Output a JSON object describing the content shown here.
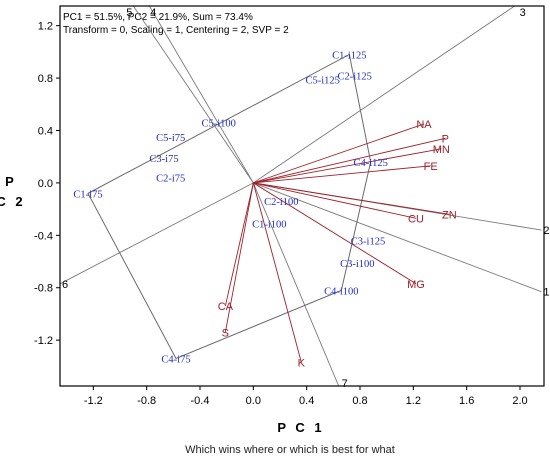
{
  "info_lines": [
    "PC1 = 51.5%, PC2 = 21.9%, Sum = 73.4%",
    "Transform = 0, Scaling = 1, Centering = 2, SVP = 2"
  ],
  "caption": "Which wins where or which is best for what",
  "chart_data": {
    "type": "scatter",
    "xlabel": "P C 1",
    "ylabel": "P C 2",
    "xlim": [
      -1.45,
      2.18
    ],
    "ylim": [
      -1.55,
      1.35
    ],
    "xticks": [
      "-1.2",
      "-0.8",
      "-0.4",
      "0.0",
      "0.4",
      "0.8",
      "1.2",
      "1.6",
      "2.0"
    ],
    "xtick_values": [
      -1.2,
      -0.8,
      -0.4,
      0.0,
      0.4,
      0.8,
      1.2,
      1.6,
      2.0
    ],
    "yticks": [
      "1.2",
      "0.8",
      "0.4",
      "0.0",
      "-0.4",
      "-0.8",
      "-1.2"
    ],
    "ytick_values": [
      1.2,
      0.8,
      0.4,
      0.0,
      -0.4,
      -0.8,
      -1.2
    ],
    "genotypes": [
      {
        "label": "C1-i125",
        "x": 0.72,
        "y": 0.98
      },
      {
        "label": "C5-i125",
        "x": 0.52,
        "y": 0.79
      },
      {
        "label": "C2-i125",
        "x": 0.76,
        "y": 0.82
      },
      {
        "label": "C5-i100",
        "x": -0.26,
        "y": 0.46
      },
      {
        "label": "C5-i75",
        "x": -0.62,
        "y": 0.35
      },
      {
        "label": "C3-i75",
        "x": -0.67,
        "y": 0.19
      },
      {
        "label": "C2-i75",
        "x": -0.62,
        "y": 0.04
      },
      {
        "label": "C1-i75",
        "x": -1.24,
        "y": -0.08
      },
      {
        "label": "C4-i125",
        "x": 0.88,
        "y": 0.16
      },
      {
        "label": "C2-i100",
        "x": 0.21,
        "y": -0.14
      },
      {
        "label": "C1-i100",
        "x": 0.12,
        "y": -0.31
      },
      {
        "label": "C3-i125",
        "x": 0.86,
        "y": -0.44
      },
      {
        "label": "C3-i100",
        "x": 0.78,
        "y": -0.61
      },
      {
        "label": "C4-i100",
        "x": 0.66,
        "y": -0.82
      },
      {
        "label": "C4-i75",
        "x": -0.58,
        "y": -1.34
      }
    ],
    "environments": [
      {
        "label": "NA",
        "x": 1.28,
        "y": 0.45
      },
      {
        "label": "P",
        "x": 1.44,
        "y": 0.34
      },
      {
        "label": "MN",
        "x": 1.41,
        "y": 0.26
      },
      {
        "label": "FE",
        "x": 1.33,
        "y": 0.13
      },
      {
        "label": "ZN",
        "x": 1.47,
        "y": -0.24
      },
      {
        "label": "CU",
        "x": 1.22,
        "y": -0.27
      },
      {
        "label": "MG",
        "x": 1.22,
        "y": -0.77
      },
      {
        "label": "CA",
        "x": -0.21,
        "y": -0.94
      },
      {
        "label": "S",
        "x": -0.21,
        "y": -1.14
      },
      {
        "label": "K",
        "x": 0.36,
        "y": -1.37
      }
    ],
    "polygon_vertices": [
      "C1-i125",
      "C4-i125",
      "C4-i100",
      "C4-i75",
      "C1-i75"
    ],
    "sector_rays": [
      {
        "label": "1",
        "x": 2.16,
        "y": -0.83
      },
      {
        "label": "2",
        "x": 2.16,
        "y": -0.36
      },
      {
        "label": "3",
        "x": 1.96,
        "y": 1.35
      },
      {
        "label": "4",
        "x": -0.78,
        "y": 1.35
      },
      {
        "label": "5",
        "x": -0.9,
        "y": 1.35
      },
      {
        "label": "6",
        "x": -1.45,
        "y": -0.77
      },
      {
        "label": "7",
        "x": 0.64,
        "y": -1.55
      }
    ]
  }
}
